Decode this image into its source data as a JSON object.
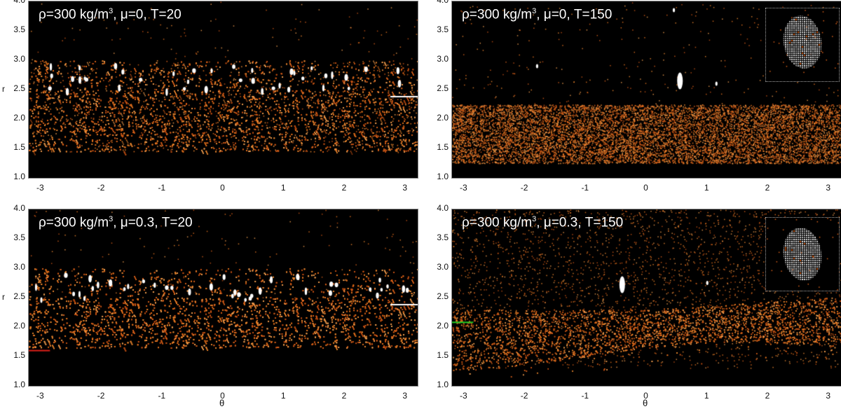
{
  "figure": {
    "panels": [
      {
        "id": "tl",
        "title_rho": "ρ=300 kg/m",
        "title_rest": ", μ=0,  T=20",
        "sup": "3"
      },
      {
        "id": "tr",
        "title_rho": "ρ=300 kg/m",
        "title_rest": ", μ=0, T=150",
        "sup": "3"
      },
      {
        "id": "bl",
        "title_rho": "ρ=300 kg/m",
        "title_rest": ", μ=0.3, T=20",
        "sup": "3"
      },
      {
        "id": "br",
        "title_rho": "ρ=300 kg/m",
        "title_rest": ", μ=0.3, T=150",
        "sup": "3"
      }
    ],
    "ylabel": "r",
    "xlabel": "θ",
    "yticks": [
      "4.0",
      "3.5",
      "3.0",
      "2.5",
      "2.0",
      "1.5",
      "1.0"
    ],
    "xticks": [
      "-3",
      "-2",
      "-1",
      "0",
      "1",
      "2",
      "3"
    ]
  },
  "colors": {
    "particles": "#e8731e",
    "background": "#000000",
    "marker_white": "#ffffff",
    "marker_red": "#e0201a",
    "marker_green": "#22cc22",
    "inset_body": "#c8c8c8"
  },
  "chart_data": [
    {
      "type": "scatter",
      "title": "ρ=300 kg/m³, μ=0,  T=20",
      "xlabel": "",
      "ylabel": "r",
      "xlim": [
        -3.2,
        3.2
      ],
      "ylim": [
        1.0,
        4.0
      ],
      "x_ticks": [
        -3,
        -2,
        -1,
        0,
        1,
        2,
        3
      ],
      "y_ticks": [
        1.0,
        1.5,
        2.0,
        2.5,
        3.0,
        3.5,
        4.0
      ],
      "description": "Dense orange particle band between r≈1.45 and r≈2.5 with sparser particles up to r≈3.0; white elongated aggregates scattered at r≈2.5–2.9",
      "band": {
        "r_min": 1.45,
        "r_dense_top": 2.5,
        "r_sparse_top": 3.0
      },
      "markers": [
        {
          "color": "white",
          "r": 2.38,
          "theta_range": [
            2.75,
            3.2
          ]
        }
      ]
    },
    {
      "type": "scatter",
      "title": "ρ=300 kg/m³, μ=0, T=150",
      "xlabel": "",
      "ylabel": "",
      "xlim": [
        -3.2,
        3.2
      ],
      "ylim": [
        1.0,
        4.0
      ],
      "x_ticks": [
        -3,
        -2,
        -1,
        0,
        1,
        2,
        3
      ],
      "y_ticks": [
        1.0,
        1.5,
        2.0,
        2.5,
        3.0,
        3.5,
        4.0
      ],
      "description": "Dense orange band between r≈1.25 and r≈2.25; sparse particles above; large white aggregate at θ≈0.55, r≈2.65; small aggregates at θ≈-1.8, r≈2.9 and θ≈1.15, r≈2.6; inset shows oval aggregate",
      "band": {
        "r_min": 1.25,
        "r_dense_top": 2.25
      },
      "aggregates": [
        {
          "theta": 0.55,
          "r": 2.65
        },
        {
          "theta": -1.8,
          "r": 2.9
        },
        {
          "theta": 1.15,
          "r": 2.6
        },
        {
          "theta": 0.45,
          "r": 3.85
        }
      ],
      "inset": true
    },
    {
      "type": "scatter",
      "title": "ρ=300 kg/m³, μ=0.3, T=20",
      "xlabel": "θ",
      "ylabel": "r",
      "xlim": [
        -3.2,
        3.2
      ],
      "ylim": [
        1.0,
        4.0
      ],
      "x_ticks": [
        -3,
        -2,
        -1,
        0,
        1,
        2,
        3
      ],
      "y_ticks": [
        1.0,
        1.5,
        2.0,
        2.5,
        3.0,
        3.5,
        4.0
      ],
      "description": "Dense orange band between r≈1.65 and r≈2.5 with sparse particles up to r≈3.0; white elongated aggregates at r≈2.4–2.9",
      "band": {
        "r_min": 1.65,
        "r_dense_top": 2.5,
        "r_sparse_top": 3.0
      },
      "markers": [
        {
          "color": "white",
          "r": 2.38,
          "theta_range": [
            2.75,
            3.2
          ]
        },
        {
          "color": "red",
          "r": 1.6,
          "theta_range": [
            -3.2,
            -2.85
          ]
        }
      ]
    },
    {
      "type": "scatter",
      "title": "ρ=300 kg/m³, μ=0.3, T=150",
      "xlabel": "θ",
      "ylabel": "",
      "xlim": [
        -3.2,
        3.2
      ],
      "ylim": [
        1.0,
        4.0
      ],
      "x_ticks": [
        -3,
        -2,
        -1,
        0,
        1,
        2,
        3
      ],
      "y_ticks": [
        1.0,
        1.5,
        2.0,
        2.5,
        3.0,
        3.5,
        4.0
      ],
      "description": "Diffuse orange distribution, densest around r≈1.6–2.3, spreading upward toward r≈4; large white aggregate at θ≈-0.4, r≈2.7; inset shows oval aggregate",
      "band": {
        "r_min": 1.5,
        "r_dense_top": 2.3
      },
      "aggregates": [
        {
          "theta": -0.4,
          "r": 2.72
        },
        {
          "theta": 1.0,
          "r": 2.75
        }
      ],
      "markers": [
        {
          "color": "green",
          "r": 2.08,
          "theta_range": [
            -3.2,
            -2.85
          ]
        }
      ],
      "inset": true
    }
  ]
}
